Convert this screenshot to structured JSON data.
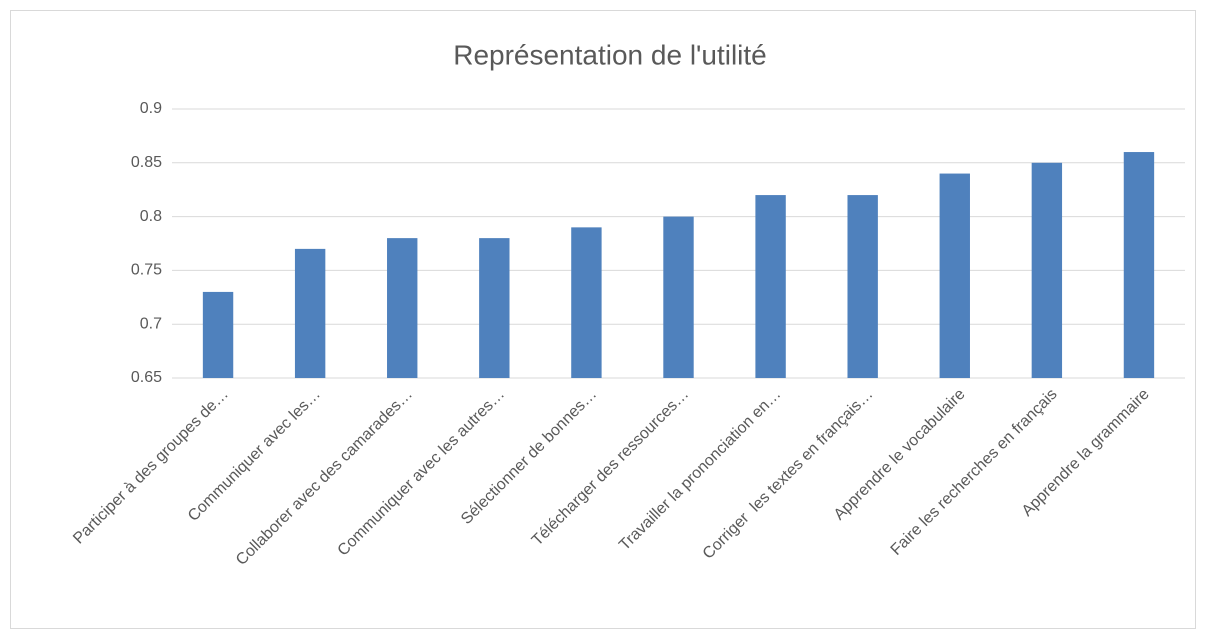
{
  "chart_data": {
    "type": "bar",
    "title": "Représentation de l'utilité",
    "categories": [
      "Participer à des groupes de…",
      "Communiquer avec les…",
      "Collaborer avec des camarades…",
      "Communiquer avec les autres…",
      "Sélectionner de bonnes…",
      "Télécharger des ressources…",
      "Travailler la prononciation en…",
      "Corriger  les textes en français…",
      "Apprendre le vocabulaire",
      "Faire les recherches en français",
      "Apprendre la grammaire"
    ],
    "values": [
      0.73,
      0.77,
      0.78,
      0.78,
      0.79,
      0.8,
      0.82,
      0.82,
      0.84,
      0.85,
      0.86
    ],
    "color": "#4f81bd",
    "ylim": [
      0.65,
      0.9
    ],
    "yticks": [
      0.65,
      0.7,
      0.75,
      0.8,
      0.85,
      0.9
    ],
    "grid": true
  }
}
